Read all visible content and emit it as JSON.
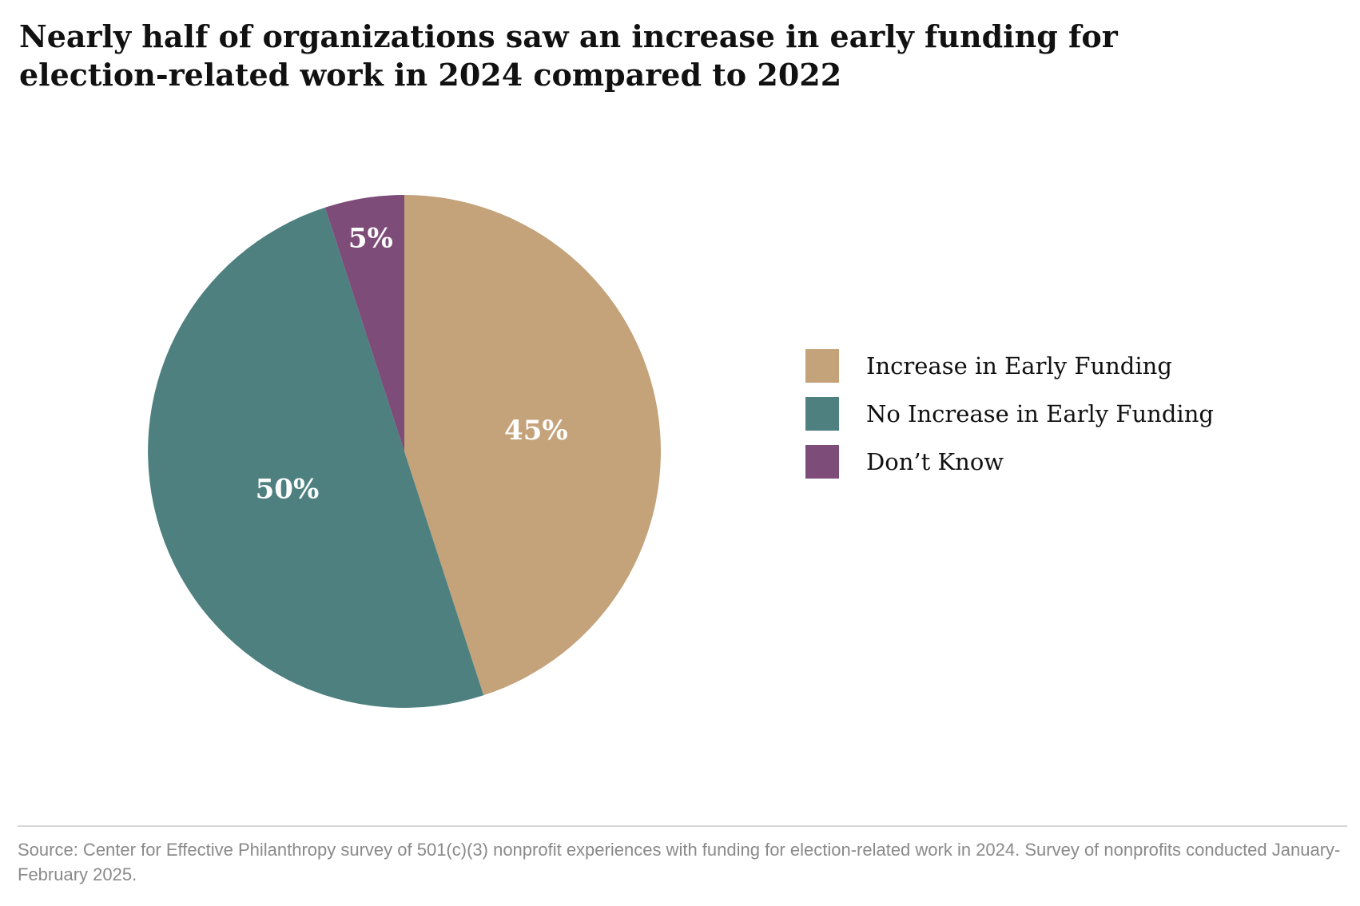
{
  "title": "Nearly half of organizations saw an increase in early funding for election-related work in 2024 compared to 2022",
  "source": "Source: Center for Effective Philanthropy survey of 501(c)(3) nonprofit experiences with funding for election-related work in 2024. Survey of nonprofits conducted January-February 2025.",
  "chart_data": {
    "type": "pie",
    "title": "Nearly half of organizations saw an increase in early funding for election-related work in 2024 compared to 2022",
    "legend_position": "right",
    "slices": [
      {
        "label": "Increase in Early Funding",
        "value": 45,
        "display": "45%",
        "color": "#c4a27a"
      },
      {
        "label": "No Increase in Early Funding",
        "value": 50,
        "display": "50%",
        "color": "#4e8080"
      },
      {
        "label": "Don’t Know",
        "value": 5,
        "display": "5%",
        "color": "#7e4c78"
      }
    ]
  }
}
